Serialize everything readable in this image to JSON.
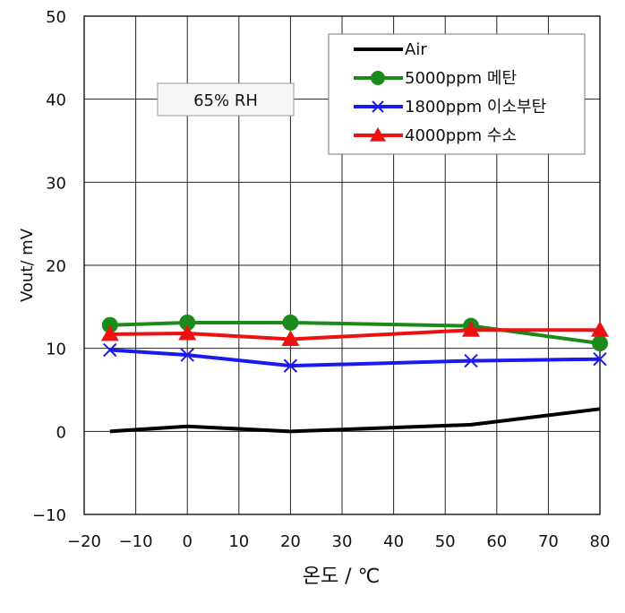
{
  "chart_data": {
    "type": "line",
    "title": "",
    "xlabel": "온도 / ℃",
    "ylabel": "Vout/ mV",
    "xlim": [
      -20,
      80
    ],
    "ylim": [
      -10,
      50
    ],
    "xticks": [
      -20,
      -10,
      0,
      10,
      20,
      30,
      40,
      50,
      60,
      70,
      80
    ],
    "yticks": [
      -10,
      0,
      10,
      20,
      30,
      40,
      50
    ],
    "grid": true,
    "legend_position": "top-right",
    "annotation": "65% RH",
    "series": [
      {
        "name": "Air",
        "color": "#000000",
        "marker": "none",
        "x": [
          -15,
          0,
          20,
          55,
          80
        ],
        "y": [
          0.0,
          0.6,
          0.0,
          0.8,
          2.7
        ]
      },
      {
        "name": "5000ppm 메탄",
        "color": "#1a8a1a",
        "marker": "circle",
        "x": [
          -15,
          0,
          20,
          55,
          80
        ],
        "y": [
          12.8,
          13.1,
          13.1,
          12.7,
          10.6
        ]
      },
      {
        "name": "1800ppm 이소부탄",
        "color": "#1a1aee",
        "marker": "x",
        "x": [
          -15,
          0,
          20,
          55,
          80
        ],
        "y": [
          9.8,
          9.2,
          7.9,
          8.5,
          8.7
        ]
      },
      {
        "name": "4000ppm  수소",
        "color": "#ee1111",
        "marker": "triangle",
        "x": [
          -15,
          0,
          20,
          55,
          80
        ],
        "y": [
          11.7,
          11.8,
          11.1,
          12.2,
          12.2
        ]
      }
    ]
  }
}
